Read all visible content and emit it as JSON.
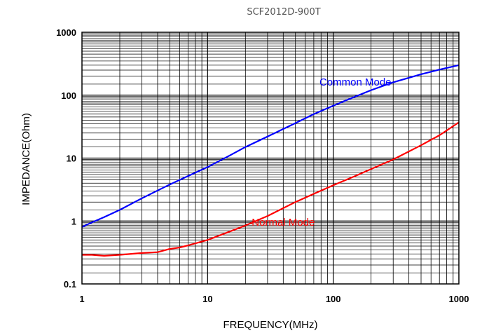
{
  "chart_data": {
    "type": "line",
    "title": "SCF2012D-900T",
    "xlabel": "FREQUENCY(MHz)",
    "ylabel": "IMPEDANCE(Ohm)",
    "x_scale": "log",
    "y_scale": "log",
    "xlim": [
      1,
      1000
    ],
    "ylim": [
      0.1,
      1000
    ],
    "x_ticks": [
      "1",
      "10",
      "100",
      "1000"
    ],
    "y_ticks": [
      "0.1",
      "1",
      "10",
      "100",
      "1000"
    ],
    "grid": true,
    "series": [
      {
        "name": "Common Mode",
        "color": "#0000ff",
        "x": [
          1,
          1.2,
          1.5,
          2,
          3,
          5,
          7,
          10,
          15,
          20,
          30,
          50,
          70,
          100,
          150,
          200,
          300,
          500,
          700,
          1000
        ],
        "y": [
          0.8,
          0.95,
          1.15,
          1.5,
          2.3,
          3.8,
          5.2,
          7.2,
          11,
          15,
          22,
          36,
          50,
          68,
          95,
          120,
          160,
          215,
          255,
          300
        ]
      },
      {
        "name": "Normal Mode",
        "color": "#ff0000",
        "x": [
          1,
          1.2,
          1.5,
          2,
          3,
          4,
          5,
          6,
          7,
          10,
          15,
          20,
          30,
          50,
          70,
          100,
          150,
          200,
          300,
          500,
          700,
          1000
        ],
        "y": [
          0.29,
          0.29,
          0.28,
          0.29,
          0.31,
          0.32,
          0.36,
          0.38,
          0.41,
          0.5,
          0.68,
          0.85,
          1.2,
          2,
          2.7,
          3.7,
          5.2,
          6.7,
          9.5,
          16,
          23,
          37
        ]
      }
    ]
  }
}
